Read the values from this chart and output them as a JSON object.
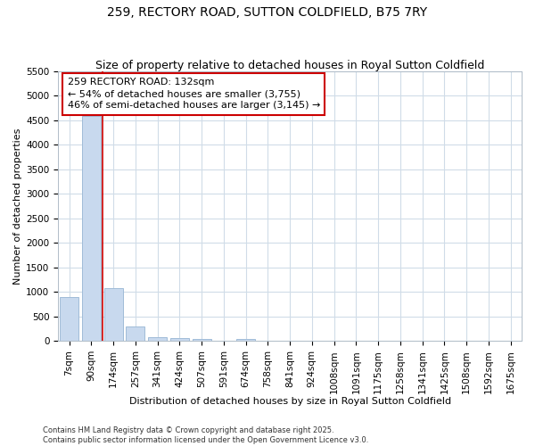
{
  "title": "259, RECTORY ROAD, SUTTON COLDFIELD, B75 7RY",
  "subtitle": "Size of property relative to detached houses in Royal Sutton Coldfield",
  "xlabel": "Distribution of detached houses by size in Royal Sutton Coldfield",
  "ylabel": "Number of detached properties",
  "categories": [
    "7sqm",
    "90sqm",
    "174sqm",
    "257sqm",
    "341sqm",
    "424sqm",
    "507sqm",
    "591sqm",
    "674sqm",
    "758sqm",
    "841sqm",
    "924sqm",
    "1008sqm",
    "1091sqm",
    "1175sqm",
    "1258sqm",
    "1341sqm",
    "1425sqm",
    "1508sqm",
    "1592sqm",
    "1675sqm"
  ],
  "values": [
    900,
    4580,
    1080,
    295,
    75,
    60,
    45,
    0,
    50,
    0,
    0,
    0,
    0,
    0,
    0,
    0,
    0,
    0,
    0,
    0,
    0
  ],
  "bar_color": "#c8d9ee",
  "bar_edge_color": "#a0bcd8",
  "vline_x_pos": 1.5,
  "vline_color": "#cc0000",
  "annotation_line1": "259 RECTORY ROAD: 132sqm",
  "annotation_line2": "← 54% of detached houses are smaller (3,755)",
  "annotation_line3": "46% of semi-detached houses are larger (3,145) →",
  "annotation_box_color": "#ffffff",
  "annotation_box_edge": "#cc0000",
  "ylim": [
    0,
    5500
  ],
  "yticks": [
    0,
    500,
    1000,
    1500,
    2000,
    2500,
    3000,
    3500,
    4000,
    4500,
    5000,
    5500
  ],
  "background_color": "#ffffff",
  "grid_color": "#d0dce8",
  "footer_text": "Contains HM Land Registry data © Crown copyright and database right 2025.\nContains public sector information licensed under the Open Government Licence v3.0.",
  "title_fontsize": 10,
  "subtitle_fontsize": 9,
  "axis_label_fontsize": 8,
  "tick_fontsize": 7.5,
  "annotation_fontsize": 8
}
